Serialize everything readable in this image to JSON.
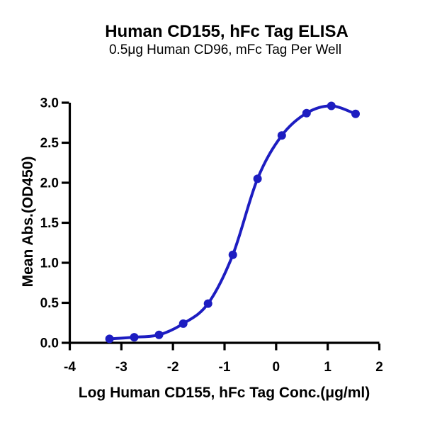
{
  "chart_data": {
    "type": "scatter",
    "title": "Human CD155, hFc Tag ELISA",
    "subtitle": "0.5μg Human CD96, mFc Tag Per Well",
    "xlabel": "Log Human CD155, hFc Tag Conc.(μg/ml)",
    "ylabel": "Mean Abs.(OD450)",
    "xlim": [
      -4,
      2
    ],
    "ylim": [
      0,
      3
    ],
    "grid": false,
    "legend": "none",
    "fit_type": "4PL sigmoidal dose-response",
    "colors": {
      "curve": "#1d1dc1",
      "points": "#1d1dc1",
      "axis": "#000000",
      "text": "#000000",
      "background": "#ffffff"
    },
    "x_ticks": [
      {
        "v": -4,
        "label": "-4"
      },
      {
        "v": -3,
        "label": "-3"
      },
      {
        "v": -2,
        "label": "-2"
      },
      {
        "v": -1,
        "label": "-1"
      },
      {
        "v": 0,
        "label": "0"
      },
      {
        "v": 1,
        "label": "1"
      },
      {
        "v": 2,
        "label": "2"
      }
    ],
    "y_ticks": [
      {
        "v": 0.0,
        "label": "0.0"
      },
      {
        "v": 0.5,
        "label": "0.5"
      },
      {
        "v": 1.0,
        "label": "1.0"
      },
      {
        "v": 1.5,
        "label": "1.5"
      },
      {
        "v": 2.0,
        "label": "2.0"
      },
      {
        "v": 2.5,
        "label": "2.5"
      },
      {
        "v": 3.0,
        "label": "3.0"
      }
    ],
    "series": [
      {
        "name": "Human CD155, hFc Tag",
        "points": [
          [
            -3.23,
            0.05
          ],
          [
            -2.75,
            0.07
          ],
          [
            -2.27,
            0.1
          ],
          [
            -1.8,
            0.24
          ],
          [
            -1.32,
            0.49
          ],
          [
            -0.84,
            1.1
          ],
          [
            -0.36,
            2.05
          ],
          [
            0.11,
            2.59
          ],
          [
            0.59,
            2.87
          ],
          [
            1.07,
            2.96
          ],
          [
            1.54,
            2.86
          ]
        ]
      }
    ]
  }
}
